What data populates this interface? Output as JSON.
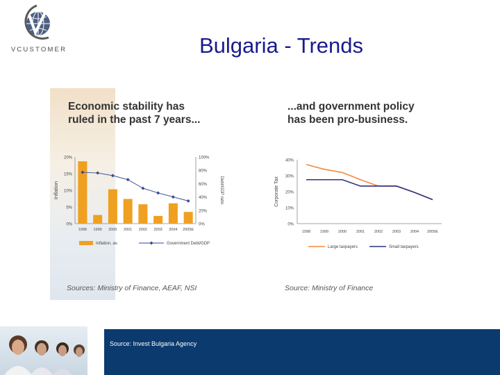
{
  "brand": {
    "logo_text": "VCUSTOMER"
  },
  "slide": {
    "title": "Bulgaria - Trends"
  },
  "left_panel": {
    "heading_line1": "Economic stability has",
    "heading_line2": "ruled in the past 7 years...",
    "source": "Sources: Ministry of Finance, AEAF, NSI"
  },
  "right_panel": {
    "heading_line1": "...and government policy",
    "heading_line2": "has been pro-business.",
    "source": "Source: Ministry of Finance"
  },
  "footer": {
    "source": "Source: Invest Bulgaria Agency"
  },
  "colors": {
    "title": "#1a1a8c",
    "footer": "#0b3a6e",
    "bar": "#f0a020",
    "debt_line": "#5a6aa8",
    "large_taxpayers": "#f28a3c",
    "small_taxpayers": "#2e2e82"
  },
  "chart_data": [
    {
      "type": "bar",
      "categories": [
        "1998",
        "1999",
        "2000",
        "2001",
        "2002",
        "2003",
        "2004",
        "2005E"
      ],
      "series": [
        {
          "name": "Inflation, av.",
          "type": "bar",
          "axis": "left",
          "values": [
            18.7,
            2.6,
            10.3,
            7.4,
            5.8,
            2.3,
            6.1,
            3.5
          ]
        },
        {
          "name": "Government Debt/GDP",
          "type": "line",
          "axis": "right",
          "values": [
            77,
            76,
            72,
            66,
            53,
            46,
            40,
            34
          ]
        }
      ],
      "ylabel": "Inflation",
      "ylabel_right": "Debt/GDP ratio",
      "ylim": [
        0,
        20
      ],
      "ylim_right": [
        0,
        100
      ],
      "y_ticks": [
        "0%",
        "5%",
        "10%",
        "15%",
        "20%"
      ],
      "y_ticks_right": [
        "0%",
        "20%",
        "40%",
        "60%",
        "80%",
        "100%"
      ],
      "legend": "bottom"
    },
    {
      "type": "line",
      "categories": [
        "1998",
        "1999",
        "2000",
        "2001",
        "2002",
        "2003",
        "2004",
        "2005E"
      ],
      "series": [
        {
          "name": "Large taxpayers",
          "values": [
            37,
            34,
            32,
            27.5,
            23.5,
            23.5,
            19.5,
            15
          ]
        },
        {
          "name": "Small taxpayers",
          "values": [
            27.5,
            27.5,
            27.5,
            23.5,
            23.5,
            23.5,
            19.5,
            15
          ]
        }
      ],
      "ylabel": "Corporate Tax",
      "ylim": [
        0,
        40
      ],
      "y_ticks": [
        "0%",
        "10%",
        "20%",
        "30%",
        "40%"
      ],
      "legend": "bottom"
    }
  ]
}
